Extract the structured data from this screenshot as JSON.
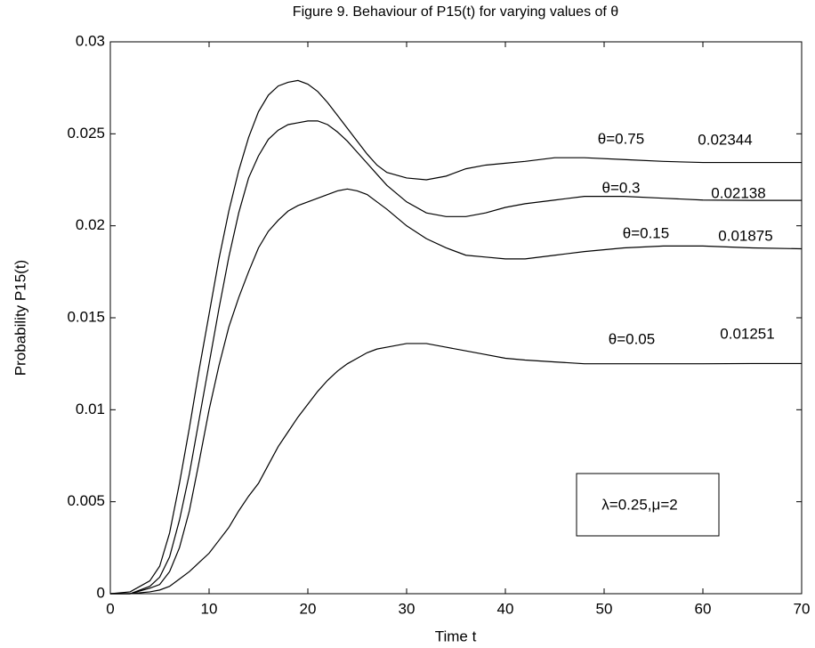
{
  "chart_data": {
    "type": "line",
    "title": "Figure 9. Behaviour of P15(t) for varying values of θ",
    "xlabel": "Time t",
    "ylabel": "Probability P15(t)",
    "x": [
      0,
      2,
      4,
      5,
      6,
      7,
      8,
      9,
      10,
      11,
      12,
      13,
      14,
      15,
      16,
      17,
      18,
      19,
      20,
      21,
      22,
      23,
      24,
      25,
      26,
      27,
      28,
      30,
      32,
      34,
      36,
      38,
      40,
      42,
      45,
      48,
      52,
      56,
      60,
      65,
      70
    ],
    "series": [
      {
        "name": "θ=0.75",
        "color": "#000000",
        "values": [
          0,
          0.0001,
          0.0007,
          0.0015,
          0.0033,
          0.006,
          0.009,
          0.0122,
          0.0152,
          0.0182,
          0.0208,
          0.023,
          0.0248,
          0.0262,
          0.0271,
          0.0276,
          0.0278,
          0.0279,
          0.0277,
          0.0273,
          0.0267,
          0.026,
          0.0253,
          0.0246,
          0.0239,
          0.0233,
          0.0229,
          0.0226,
          0.0225,
          0.0227,
          0.0231,
          0.0233,
          0.0234,
          0.0235,
          0.0237,
          0.0237,
          0.0236,
          0.0235,
          0.02344,
          0.02344,
          0.02344
        ]
      },
      {
        "name": "θ=0.3",
        "color": "#000000",
        "values": [
          0,
          0,
          0.0004,
          0.0009,
          0.002,
          0.004,
          0.0065,
          0.0095,
          0.0125,
          0.0155,
          0.0183,
          0.0207,
          0.0226,
          0.0238,
          0.0247,
          0.0252,
          0.0255,
          0.0256,
          0.0257,
          0.0257,
          0.0255,
          0.0251,
          0.0246,
          0.024,
          0.0234,
          0.0228,
          0.0222,
          0.0213,
          0.0207,
          0.0205,
          0.0205,
          0.0207,
          0.021,
          0.0212,
          0.0214,
          0.0216,
          0.0216,
          0.0215,
          0.0214,
          0.02138,
          0.02138
        ]
      },
      {
        "name": "θ=0.15",
        "color": "#000000",
        "values": [
          0,
          0,
          0.0003,
          0.0005,
          0.0012,
          0.0025,
          0.0045,
          0.0072,
          0.01,
          0.0124,
          0.0145,
          0.0161,
          0.0175,
          0.0188,
          0.0197,
          0.0203,
          0.0208,
          0.0211,
          0.0213,
          0.0215,
          0.0217,
          0.0219,
          0.022,
          0.0219,
          0.0217,
          0.0213,
          0.0209,
          0.02,
          0.0193,
          0.0188,
          0.0184,
          0.0183,
          0.0182,
          0.0182,
          0.0184,
          0.0186,
          0.0188,
          0.0189,
          0.0189,
          0.0188,
          0.01875
        ]
      },
      {
        "name": "θ=0.05",
        "color": "#000000",
        "values": [
          0,
          0,
          0.0001,
          0.0002,
          0.0004,
          0.0008,
          0.0012,
          0.0017,
          0.0022,
          0.0029,
          0.0036,
          0.0045,
          0.0053,
          0.006,
          0.007,
          0.008,
          0.0088,
          0.0096,
          0.0103,
          0.011,
          0.0116,
          0.0121,
          0.0125,
          0.0128,
          0.0131,
          0.0133,
          0.0134,
          0.0136,
          0.0136,
          0.0134,
          0.0132,
          0.013,
          0.0128,
          0.0127,
          0.0126,
          0.0125,
          0.0125,
          0.0125,
          0.0125,
          0.01251,
          0.01251
        ]
      }
    ],
    "end_labels": [
      "0.02344",
      "0.02138",
      "0.01875",
      "0.01251"
    ],
    "annotation": "λ=0.25,μ=2",
    "xlim": [
      0,
      70
    ],
    "xticks": [
      0,
      10,
      20,
      30,
      40,
      50,
      60,
      70
    ],
    "ylim": [
      0,
      0.03
    ],
    "yticks": [
      0,
      0.005,
      0.01,
      0.015,
      0.02,
      0.025,
      0.03
    ],
    "grid": false
  }
}
